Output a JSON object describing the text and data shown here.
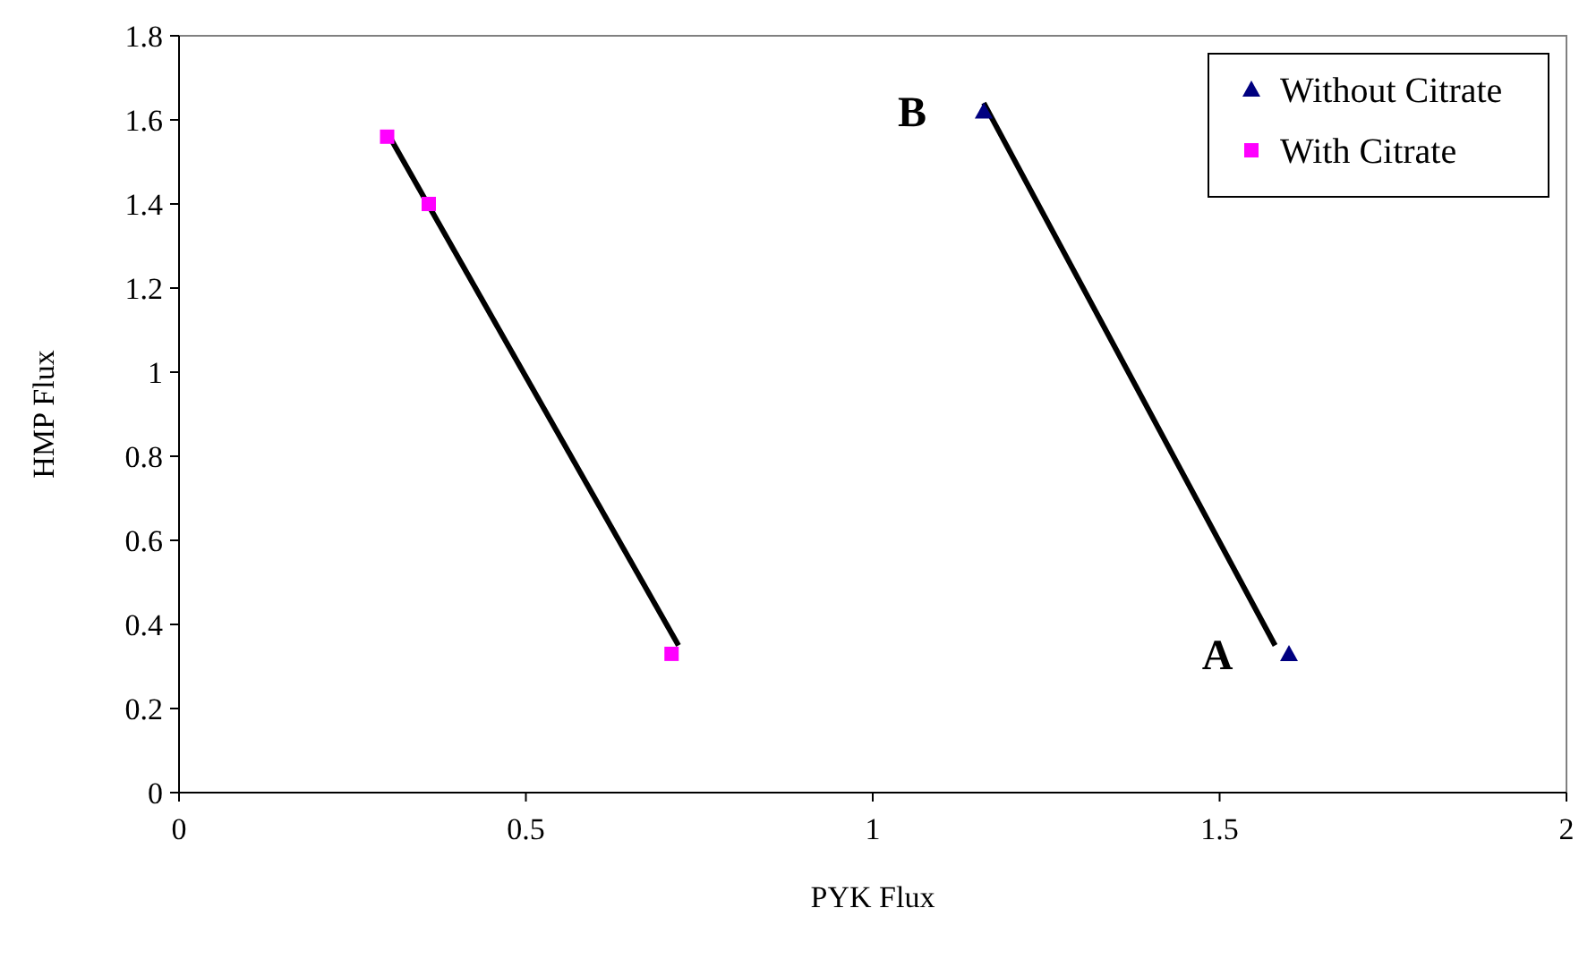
{
  "chart_data": {
    "type": "scatter",
    "xlabel": "PYK Flux",
    "ylabel": "HMP Flux",
    "xlim": [
      0,
      2
    ],
    "ylim": [
      0,
      1.8
    ],
    "xticks": [
      0,
      0.5,
      1,
      1.5,
      2
    ],
    "yticks": [
      0,
      0.2,
      0.4,
      0.6,
      0.8,
      1,
      1.2,
      1.4,
      1.6,
      1.8
    ],
    "grid": false,
    "legend": "top right",
    "series": [
      {
        "name": "Without Citrate",
        "color": "#000080",
        "marker": "triangle",
        "x": [
          1.16,
          1.6
        ],
        "values": [
          1.62,
          0.33
        ]
      },
      {
        "name": "With Citrate",
        "color": "#ff00ff",
        "marker": "square",
        "x": [
          0.3,
          0.36,
          0.71
        ],
        "values": [
          1.56,
          1.4,
          0.33
        ]
      },
      {
        "type": "line",
        "color": "#000000",
        "marker": "none",
        "line_style": "solid",
        "x": [
          0.3,
          0.72
        ],
        "values": [
          1.57,
          0.35
        ]
      },
      {
        "type": "line",
        "color": "#000000",
        "marker": "none",
        "line_style": "solid",
        "x": [
          1.16,
          1.58
        ],
        "values": [
          1.64,
          0.35
        ]
      }
    ],
    "annotations": [
      {
        "text": "B",
        "x": 1.16,
        "y": 1.62
      },
      {
        "text": "A",
        "x": 1.6,
        "y": 0.33
      }
    ]
  }
}
